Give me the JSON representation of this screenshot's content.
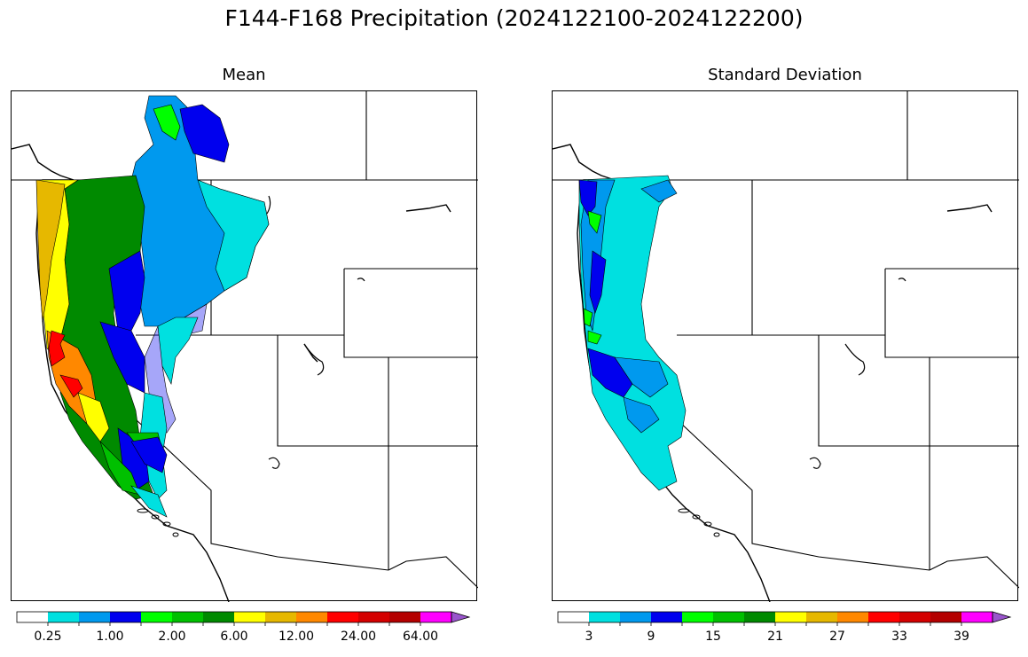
{
  "title": "F144-F168 Precipitation (2024122100-2024122200)",
  "panels": [
    {
      "title": "Mean",
      "colorbar": {
        "colors": [
          "#ffffff",
          "#00e0e0",
          "#0099ee",
          "#0000ee",
          "#00ff00",
          "#00c000",
          "#008a00",
          "#ffff00",
          "#e6b800",
          "#ff8800",
          "#ff0000",
          "#d40000",
          "#b40000",
          "#ff00ff",
          "#9955cc"
        ],
        "tick_labels": [
          "0.25",
          "1.00",
          "2.00",
          "6.00",
          "12.00",
          "24.00",
          "64.00"
        ],
        "extend": "max"
      }
    },
    {
      "title": "Standard Deviation",
      "colorbar": {
        "colors": [
          "#ffffff",
          "#00e0e0",
          "#0099ee",
          "#0000ee",
          "#00ff00",
          "#00c000",
          "#008a00",
          "#ffff00",
          "#e6b800",
          "#ff8800",
          "#ff0000",
          "#d40000",
          "#b40000",
          "#ff00ff",
          "#9955cc"
        ],
        "tick_labels": [
          "3",
          "9",
          "15",
          "21",
          "27",
          "33",
          "39"
        ],
        "extend": "max"
      }
    }
  ]
}
